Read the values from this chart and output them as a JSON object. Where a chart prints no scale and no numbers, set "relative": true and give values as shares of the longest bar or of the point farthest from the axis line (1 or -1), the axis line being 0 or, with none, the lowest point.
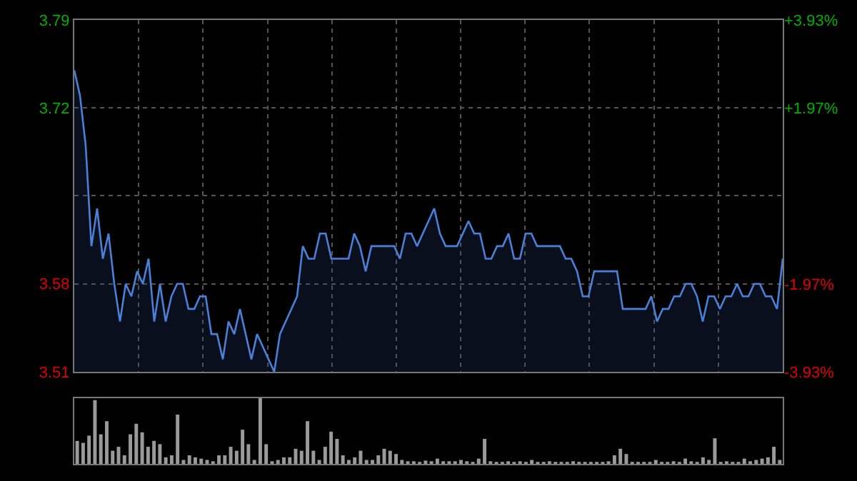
{
  "chart_data": [
    {
      "type": "area",
      "categories": [
        null,
        null,
        null,
        null,
        null,
        null,
        null,
        null,
        null,
        null,
        null,
        null,
        null,
        null,
        null,
        null,
        null,
        null,
        null,
        null,
        null,
        null,
        null,
        null,
        null,
        null,
        null,
        null,
        null,
        null,
        null,
        null,
        null,
        null,
        null,
        null,
        null,
        null,
        null,
        null,
        null,
        null,
        null,
        null,
        null,
        null,
        null,
        null,
        null,
        null,
        null,
        null,
        null,
        null,
        null,
        null,
        null,
        null,
        null,
        null,
        null,
        null,
        null,
        null,
        null,
        null,
        null,
        null,
        null,
        null,
        null,
        null,
        null,
        null,
        null,
        null,
        null,
        null,
        null,
        null,
        null,
        null,
        null,
        null,
        null,
        null,
        null,
        null,
        null,
        null,
        null,
        null,
        null,
        null,
        null,
        null,
        null,
        null,
        null,
        null,
        null,
        null,
        null,
        null,
        null,
        null,
        null,
        null,
        null,
        null,
        null,
        null,
        null,
        null,
        null,
        null,
        null,
        null,
        null,
        null,
        null,
        null,
        null,
        null,
        null
      ],
      "series": [
        {
          "color": "#4a80d8",
          "values": [
            3.75,
            3.73,
            3.69,
            3.61,
            3.64,
            3.6,
            3.62,
            3.58,
            3.55,
            3.58,
            3.57,
            3.59,
            3.58,
            3.6,
            3.55,
            3.58,
            3.55,
            3.57,
            3.58,
            3.58,
            3.56,
            3.56,
            3.57,
            3.57,
            3.54,
            3.54,
            3.52,
            3.55,
            3.54,
            3.56,
            3.54,
            3.52,
            3.54,
            3.53,
            3.52,
            3.51,
            3.54,
            3.55,
            3.56,
            3.57,
            3.61,
            3.6,
            3.6,
            3.62,
            3.62,
            3.6,
            3.6,
            3.6,
            3.6,
            3.62,
            3.61,
            3.59,
            3.61,
            3.61,
            3.61,
            3.61,
            3.61,
            3.6,
            3.62,
            3.62,
            3.61,
            3.62,
            3.63,
            3.64,
            3.62,
            3.61,
            3.61,
            3.61,
            3.62,
            3.63,
            3.62,
            3.62,
            3.6,
            3.6,
            3.61,
            3.61,
            3.62,
            3.6,
            3.6,
            3.62,
            3.62,
            3.61,
            3.61,
            3.61,
            3.61,
            3.61,
            3.6,
            3.6,
            3.59,
            3.57,
            3.57,
            3.59,
            3.59,
            3.59,
            3.59,
            3.59,
            3.56,
            3.56,
            3.56,
            3.56,
            3.56,
            3.57,
            3.55,
            3.56,
            3.56,
            3.57,
            3.57,
            3.58,
            3.58,
            3.57,
            3.55,
            3.57,
            3.57,
            3.56,
            3.57,
            3.57,
            3.58,
            3.57,
            3.57,
            3.58,
            3.58,
            3.57,
            3.57,
            3.56,
            3.6
          ]
        }
      ],
      "ylim": [
        3.51,
        3.79
      ],
      "yticks": [
        3.51,
        3.58,
        {
          "value": 3.65,
          "label": null
        },
        3.72,
        3.79
      ],
      "y2lim": [
        -3.93,
        3.93
      ],
      "y2ticks": [
        {
          "value": -3.93,
          "label": "-3.93%"
        },
        {
          "value": -1.97,
          "label": "-1.97%"
        },
        {
          "value": 1.97,
          "label": "+1.97%"
        },
        {
          "value": 3.93,
          "label": "+3.93%"
        }
      ],
      "tick_labels": "y",
      "grid": true,
      "legend": false
    },
    {
      "type": "bar",
      "relative": true,
      "categories": [
        null,
        null,
        null,
        null,
        null,
        null,
        null,
        null,
        null,
        null,
        null,
        null,
        null,
        null,
        null,
        null,
        null,
        null,
        null,
        null,
        null,
        null,
        null,
        null,
        null,
        null,
        null,
        null,
        null,
        null,
        null,
        null,
        null,
        null,
        null,
        null,
        null,
        null,
        null,
        null,
        null,
        null,
        null,
        null,
        null,
        null,
        null,
        null,
        null,
        null,
        null,
        null,
        null,
        null,
        null,
        null,
        null,
        null,
        null,
        null,
        null,
        null,
        null,
        null,
        null,
        null,
        null,
        null,
        null,
        null,
        null,
        null,
        null,
        null,
        null,
        null,
        null,
        null,
        null,
        null,
        null,
        null,
        null,
        null,
        null,
        null,
        null,
        null,
        null,
        null,
        null,
        null,
        null,
        null,
        null,
        null,
        null,
        null,
        null,
        null,
        null,
        null,
        null,
        null,
        null,
        null,
        null,
        null,
        null,
        null,
        null,
        null,
        null,
        null,
        null,
        null,
        null,
        null,
        null,
        null
      ],
      "color": "#9a9a9a",
      "values": [
        0.35,
        0.32,
        0.43,
        0.97,
        0.45,
        0.65,
        0.2,
        0.26,
        0.13,
        0.45,
        0.61,
        0.48,
        0.26,
        0.35,
        0.3,
        0.1,
        0.13,
        0.75,
        0.06,
        0.13,
        0.1,
        0.08,
        0.06,
        0.04,
        0.13,
        0.13,
        0.26,
        0.2,
        0.52,
        0.3,
        0.06,
        1.0,
        0.3,
        0.04,
        0.06,
        0.1,
        0.1,
        0.23,
        0.2,
        0.65,
        0.2,
        0.06,
        0.26,
        0.49,
        0.38,
        0.13,
        0.06,
        0.1,
        0.2,
        0.06,
        0.06,
        0.13,
        0.23,
        0.2,
        0.15,
        0.06,
        0.04,
        0.04,
        0.03,
        0.05,
        0.04,
        0.08,
        0.04,
        0.04,
        0.04,
        0.06,
        0.04,
        0.03,
        0.08,
        0.38,
        0.04,
        0.03,
        0.03,
        0.04,
        0.03,
        0.04,
        0.03,
        0.06,
        0.03,
        0.03,
        0.04,
        0.03,
        0.03,
        0.03,
        0.04,
        0.03,
        0.03,
        0.03,
        0.03,
        0.03,
        0.04,
        0.13,
        0.23,
        0.15,
        0.03,
        0.03,
        0.03,
        0.03,
        0.06,
        0.03,
        0.03,
        0.04,
        0.03,
        0.08,
        0.04,
        0.03,
        0.1,
        0.06,
        0.39,
        0.03,
        0.04,
        0.03,
        0.03,
        0.08,
        0.04,
        0.06,
        0.08,
        0.1,
        0.26,
        0.06
      ],
      "tick_labels": false,
      "legend": false
    }
  ]
}
